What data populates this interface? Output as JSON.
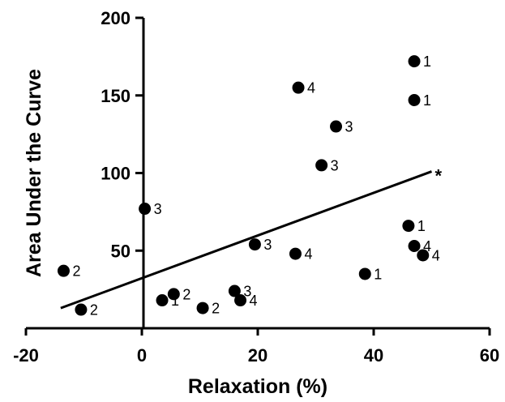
{
  "chart_data": {
    "type": "scatter",
    "xlabel": "Relaxation (%)",
    "ylabel": "Area Under the Curve",
    "xlim": [
      -20,
      60
    ],
    "ylim": [
      0,
      200
    ],
    "x_ticks": [
      "-20",
      "0",
      "20",
      "40",
      "60"
    ],
    "y_ticks": [
      "50",
      "100",
      "150",
      "200"
    ],
    "points": [
      {
        "x": -13.5,
        "y": 37,
        "label": "2"
      },
      {
        "x": -10.5,
        "y": 12,
        "label": "2"
      },
      {
        "x": 0.5,
        "y": 77,
        "label": "3"
      },
      {
        "x": 3.5,
        "y": 18,
        "label": "1"
      },
      {
        "x": 5.5,
        "y": 22,
        "label": "2"
      },
      {
        "x": 10.5,
        "y": 13,
        "label": "2"
      },
      {
        "x": 16.0,
        "y": 24,
        "label": "3"
      },
      {
        "x": 17.0,
        "y": 18,
        "label": "4"
      },
      {
        "x": 19.5,
        "y": 54,
        "label": "3"
      },
      {
        "x": 26.5,
        "y": 48,
        "label": "4"
      },
      {
        "x": 27.0,
        "y": 155,
        "label": "4"
      },
      {
        "x": 31.0,
        "y": 105,
        "label": "3"
      },
      {
        "x": 33.5,
        "y": 130,
        "label": "3"
      },
      {
        "x": 38.5,
        "y": 35,
        "label": "1"
      },
      {
        "x": 46.0,
        "y": 66,
        "label": "1"
      },
      {
        "x": 47.0,
        "y": 53,
        "label": "4"
      },
      {
        "x": 48.5,
        "y": 47,
        "label": "4"
      },
      {
        "x": 47.0,
        "y": 147,
        "label": "1"
      },
      {
        "x": 47.0,
        "y": 172,
        "label": "1"
      }
    ],
    "fit_line": {
      "x": [
        -14,
        50
      ],
      "y": [
        13,
        101
      ]
    },
    "annotation": "*",
    "grid": false,
    "legend": "none"
  }
}
